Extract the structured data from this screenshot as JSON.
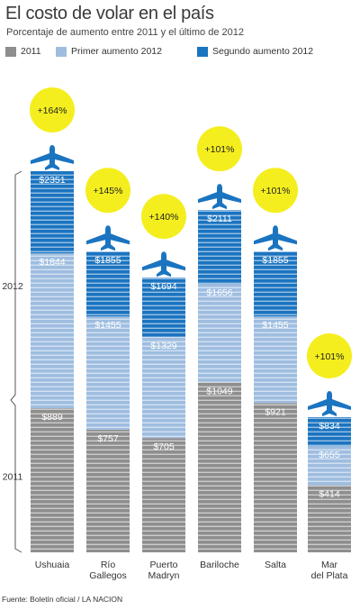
{
  "title": "El costo de volar en el país",
  "subtitle": "Porcentaje de aumento entre 2011 y el último de 2012",
  "source": "Fuente: Boletín oficial / LA NACION",
  "colors": {
    "y2011": "#8e8e8e",
    "primer": "#9ebde0",
    "segundo": "#1b74c0",
    "circle": "#f4ee1e",
    "plane": "#1b74c0",
    "text_dark": "#333333"
  },
  "legend": [
    {
      "label": "2011",
      "color": "#8e8e8e"
    },
    {
      "label": "Primer aumento 2012",
      "color": "#9ebde0"
    },
    {
      "label": "Segundo aumento 2012",
      "color": "#1b74c0"
    }
  ],
  "chart_data": {
    "type": "bar",
    "title": "El costo de volar en el país",
    "subtitle": "Porcentaje de aumento entre 2011 y el último de 2012",
    "categories": [
      [
        "Ushuaia"
      ],
      [
        "Río",
        "Gallegos"
      ],
      [
        "Puerto",
        "Madryn"
      ],
      [
        "Bariloche"
      ],
      [
        "Salta"
      ],
      [
        "Mar",
        "del Plata"
      ]
    ],
    "series": [
      {
        "name": "2011",
        "values": [
          889,
          757,
          705,
          1049,
          921,
          414
        ],
        "labels": [
          "$889",
          "$757",
          "$705",
          "$1049",
          "$921",
          "$414"
        ]
      },
      {
        "name": "Primer aumento 2012",
        "values": [
          1844,
          1455,
          1329,
          1656,
          1455,
          655
        ],
        "labels": [
          "$1844",
          "$1455",
          "$1329",
          "$1656",
          "$1455",
          "$655"
        ]
      },
      {
        "name": "Segundo aumento 2012",
        "values": [
          2351,
          1855,
          1694,
          2111,
          1855,
          834
        ],
        "labels": [
          "$2351",
          "$1855",
          "$1694",
          "$2111",
          "$1855",
          "$834"
        ]
      }
    ],
    "increase": [
      "+164%",
      "+145%",
      "+140%",
      "+101%",
      "+101%",
      "+101%"
    ],
    "brackets": [
      "2012",
      "2011"
    ],
    "ylim": [
      0,
      2351
    ]
  }
}
